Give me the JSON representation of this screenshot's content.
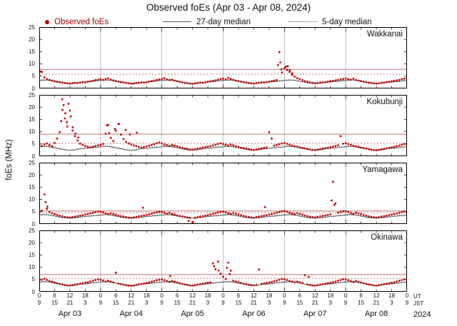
{
  "title": "Observed foEs (Apr 03 - Apr 08, 2024)",
  "legend": {
    "observed": "Observed foEs",
    "median27": "27-day median",
    "median5": "5-day median"
  },
  "ylabel": "foEs (MHz)",
  "axis": {
    "y_ticks": [
      0,
      5,
      10,
      15,
      20,
      25
    ],
    "hours_total": 144,
    "ut_label": "UT",
    "jst_label": "JST",
    "year": "2024",
    "x_ticks": [
      [
        0,
        "0",
        "9"
      ],
      [
        6,
        "6",
        "15"
      ],
      [
        12,
        "12",
        "21"
      ],
      [
        18,
        "18",
        "3"
      ],
      [
        24,
        "0",
        "9"
      ],
      [
        30,
        "6",
        "15"
      ],
      [
        36,
        "12",
        "21"
      ],
      [
        42,
        "18",
        "3"
      ],
      [
        48,
        "0",
        "9"
      ],
      [
        54,
        "6",
        "15"
      ],
      [
        60,
        "12",
        "21"
      ],
      [
        66,
        "18",
        "3"
      ],
      [
        72,
        "0",
        "9"
      ],
      [
        78,
        "6",
        "15"
      ],
      [
        84,
        "12",
        "21"
      ],
      [
        90,
        "18",
        "3"
      ],
      [
        96,
        "0",
        "9"
      ],
      [
        102,
        "6",
        "15"
      ],
      [
        108,
        "12",
        "21"
      ],
      [
        114,
        "18",
        "3"
      ],
      [
        120,
        "0",
        "9"
      ],
      [
        126,
        "6",
        "15"
      ],
      [
        132,
        "12",
        "21"
      ],
      [
        138,
        "18",
        "3"
      ],
      [
        144,
        "0",
        "9"
      ]
    ],
    "dates": [
      [
        12,
        "Apr 03"
      ],
      [
        36,
        "Apr 04"
      ],
      [
        60,
        "Apr 05"
      ],
      [
        84,
        "Apr 06"
      ],
      [
        108,
        "Apr 07"
      ],
      [
        132,
        "Apr 08"
      ]
    ]
  },
  "colors": {
    "observed": "#c00000",
    "median": "#333333",
    "red_line": "#b85c5c",
    "grid": "#999999"
  },
  "chart_data": {
    "type": "scatter",
    "x_unit": "hours UT from Apr 03 00:00",
    "ylim": [
      0,
      25
    ],
    "stations": [
      {
        "name": "Wakkanai",
        "line_solid": 7.8,
        "line_dotted": 5.8,
        "hourly": [
          5.2,
          6.8,
          4.5,
          3.8,
          3.5,
          3.2,
          2.9,
          2.7,
          2.6,
          2.4,
          2.2,
          2.1,
          2.0,
          2.1,
          2.3,
          2.2,
          2.4,
          2.6,
          2.5,
          2.7,
          2.9,
          3.1,
          3.4,
          3.6,
          3.8,
          3.5,
          3.9,
          4.1,
          3.6,
          3.3,
          3.0,
          2.8,
          2.6,
          2.5,
          2.3,
          2.1,
          2.0,
          2.0,
          2.2,
          2.3,
          2.5,
          2.4,
          2.6,
          2.8,
          3.0,
          3.2,
          3.5,
          3.7,
          3.9,
          4.2,
          3.7,
          3.4,
          3.6,
          3.2,
          3.0,
          2.7,
          2.5,
          2.3,
          2.2,
          2.0,
          1.9,
          2.1,
          2.2,
          2.4,
          2.3,
          2.5,
          2.7,
          2.9,
          3.1,
          3.3,
          3.6,
          3.8,
          4.0,
          3.7,
          4.3,
          3.9,
          3.5,
          3.2,
          3.0,
          2.8,
          2.6,
          2.4,
          2.2,
          2.1,
          2.0,
          2.2,
          2.3,
          2.5,
          2.4,
          2.6,
          2.8,
          3.0,
          3.2,
          3.4,
          14.8,
          6.5,
          8.2,
          7.5,
          6.8,
          5.5,
          4.8,
          4.2,
          3.8,
          3.4,
          3.0,
          2.7,
          2.5,
          2.3,
          2.1,
          2.2,
          2.4,
          2.5,
          2.6,
          2.8,
          3.0,
          3.1,
          3.3,
          3.5,
          3.7,
          3.9,
          4.1,
          3.8,
          3.6,
          4.0,
          3.5,
          3.2,
          3.0,
          2.8,
          2.6,
          2.4,
          2.3,
          2.1,
          2.0,
          2.1,
          2.3,
          2.4,
          2.6,
          2.7,
          2.9,
          3.1,
          3.3,
          3.5,
          3.8,
          4.0,
          4.2
        ],
        "extra": [
          [
            0.5,
            6.9
          ],
          [
            93.5,
            9.5
          ],
          [
            94.4,
            10.6
          ],
          [
            94.8,
            7.8
          ],
          [
            96.5,
            8.8
          ],
          [
            97.3,
            9.1
          ],
          [
            98.1,
            7.4
          ],
          [
            99.0,
            6.2
          ]
        ],
        "median27_diurnal": [
          3.2,
          3.3,
          3.4,
          3.4,
          3.3,
          3.1,
          2.9,
          2.7,
          2.5,
          2.3,
          2.2,
          2.1,
          2.0,
          2.1,
          2.2,
          2.3,
          2.4,
          2.5,
          2.6,
          2.7,
          2.8,
          2.9,
          3.0,
          3.1
        ],
        "median5_diurnal": [
          3.4,
          3.5,
          3.6,
          3.5,
          3.4,
          3.2,
          3.0,
          2.8,
          2.6,
          2.4,
          2.2,
          2.1,
          2.1,
          2.2,
          2.3,
          2.4,
          2.5,
          2.6,
          2.7,
          2.8,
          2.9,
          3.0,
          3.2,
          3.3
        ]
      },
      {
        "name": "Kokubunji",
        "line_solid": 9.0,
        "line_dotted": 5.2,
        "hourly": [
          4.5,
          4.2,
          4.8,
          5.2,
          4.6,
          4.0,
          5.5,
          7.2,
          9.8,
          23.2,
          15.4,
          12.1,
          18.6,
          10.5,
          8.2,
          6.4,
          5.1,
          4.6,
          4.2,
          3.9,
          3.6,
          3.8,
          4.1,
          4.4,
          4.6,
          5.0,
          9.2,
          12.8,
          7.5,
          6.2,
          10.4,
          13.1,
          8.8,
          7.0,
          5.8,
          5.2,
          4.8,
          4.4,
          4.1,
          3.8,
          3.5,
          3.7,
          4.0,
          4.3,
          4.6,
          4.9,
          5.3,
          5.6,
          5.2,
          4.8,
          4.5,
          4.2,
          4.6,
          4.3,
          4.0,
          3.7,
          3.4,
          3.2,
          3.0,
          2.8,
          2.7,
          2.9,
          3.1,
          3.3,
          3.5,
          3.7,
          3.9,
          4.1,
          4.4,
          4.7,
          5.0,
          5.3,
          5.0,
          4.7,
          4.4,
          4.8,
          4.5,
          4.1,
          3.8,
          3.5,
          3.3,
          3.1,
          2.9,
          2.7,
          2.6,
          2.8,
          3.0,
          3.2,
          3.4,
          3.6,
          9.8,
          7.2,
          4.3,
          4.6,
          4.9,
          5.2,
          5.4,
          5.1,
          4.7,
          4.4,
          4.1,
          3.9,
          3.6,
          3.4,
          3.2,
          3.0,
          2.8,
          2.6,
          2.5,
          2.7,
          2.9,
          3.1,
          3.3,
          3.5,
          3.7,
          3.9,
          4.2,
          4.5,
          8.2,
          5.1,
          5.3,
          5.0,
          4.6,
          4.3,
          4.0,
          3.8,
          3.5,
          3.3,
          3.1,
          2.9,
          2.7,
          2.5,
          2.4,
          2.6,
          2.8,
          3.0,
          3.2,
          3.4,
          3.6,
          3.8,
          4.1,
          4.4,
          4.7,
          5.0,
          4.8
        ],
        "extra": [
          [
            8.6,
            14.3
          ],
          [
            9.1,
            18.9
          ],
          [
            9.5,
            20.8
          ],
          [
            10.2,
            17.5
          ],
          [
            10.8,
            13.9
          ],
          [
            11.5,
            21.4
          ],
          [
            12.3,
            16.2
          ],
          [
            13.1,
            11.8
          ],
          [
            14.2,
            9.2
          ],
          [
            15.3,
            7.6
          ],
          [
            26.5,
            12.6
          ],
          [
            27.4,
            9.4
          ],
          [
            29.6,
            11.1
          ],
          [
            31.2,
            13.2
          ],
          [
            33.8,
            10.7
          ],
          [
            35.5,
            8.9
          ],
          [
            38.2,
            9.6
          ]
        ],
        "median27_diurnal": [
          3.8,
          3.9,
          4.0,
          3.9,
          3.8,
          3.6,
          3.4,
          3.2,
          3.0,
          2.8,
          2.6,
          2.5,
          2.4,
          2.5,
          2.6,
          2.8,
          3.0,
          3.1,
          3.2,
          3.3,
          3.4,
          3.5,
          3.6,
          3.7
        ],
        "median5_diurnal": [
          4.2,
          4.3,
          4.4,
          4.3,
          4.1,
          3.9,
          3.7,
          3.5,
          3.2,
          3.0,
          2.8,
          2.6,
          2.5,
          2.6,
          2.8,
          3.0,
          3.1,
          3.2,
          3.3,
          3.4,
          3.6,
          3.8,
          4.0,
          4.1
        ]
      },
      {
        "name": "Yamagawa",
        "line_solid": 5.3,
        "line_dotted": 4.6,
        "hourly": [
          4.8,
          5.5,
          12.1,
          6.2,
          4.9,
          4.4,
          4.0,
          3.7,
          3.4,
          3.1,
          2.9,
          2.7,
          2.6,
          2.8,
          3.0,
          3.2,
          3.4,
          3.6,
          3.8,
          4.0,
          4.3,
          4.6,
          4.9,
          5.1,
          5.0,
          4.7,
          4.3,
          4.0,
          4.4,
          4.1,
          3.8,
          3.5,
          3.2,
          3.0,
          2.8,
          2.6,
          2.5,
          2.7,
          2.9,
          3.1,
          3.3,
          3.5,
          3.7,
          3.9,
          4.2,
          4.5,
          4.8,
          5.0,
          4.9,
          4.6,
          4.2,
          4.5,
          4.1,
          3.8,
          3.5,
          3.3,
          3.1,
          2.9,
          2.7,
          2.5,
          0.6,
          2.6,
          2.8,
          3.0,
          3.2,
          3.4,
          3.6,
          3.8,
          4.1,
          4.4,
          4.7,
          4.9,
          5.1,
          4.8,
          4.4,
          4.1,
          4.5,
          4.2,
          3.9,
          3.6,
          3.3,
          3.1,
          2.9,
          2.7,
          2.6,
          2.8,
          3.0,
          3.2,
          3.4,
          3.6,
          3.8,
          4.0,
          4.3,
          4.6,
          4.9,
          5.2,
          5.3,
          5.0,
          4.6,
          4.3,
          4.0,
          4.4,
          4.1,
          3.8,
          3.5,
          3.2,
          3.0,
          2.8,
          2.7,
          2.9,
          3.1,
          3.3,
          3.5,
          3.7,
          3.9,
          17.2,
          8.4,
          4.6,
          4.9,
          5.2,
          5.2,
          4.9,
          4.5,
          4.2,
          4.6,
          4.3,
          4.0,
          3.7,
          3.4,
          3.1,
          2.9,
          2.7,
          2.6,
          2.8,
          3.0,
          3.2,
          3.4,
          3.6,
          3.8,
          4.0,
          4.3,
          4.6,
          4.9,
          5.1,
          5.0
        ],
        "extra": [
          [
            2.5,
            8.9
          ],
          [
            3.2,
            7.1
          ],
          [
            58.5,
            1.2
          ],
          [
            60.2,
            0.8
          ],
          [
            88.4,
            6.9
          ],
          [
            40.6,
            6.6
          ],
          [
            114.5,
            9.6
          ],
          [
            115.6,
            7.8
          ]
        ],
        "median27_diurnal": [
          3.6,
          3.7,
          3.8,
          3.7,
          3.6,
          3.4,
          3.2,
          3.0,
          2.8,
          2.6,
          2.5,
          2.4,
          2.3,
          2.4,
          2.5,
          2.6,
          2.8,
          2.9,
          3.0,
          3.1,
          3.2,
          3.3,
          3.4,
          3.5
        ],
        "median5_diurnal": [
          3.8,
          3.9,
          4.0,
          3.9,
          3.8,
          3.6,
          3.4,
          3.2,
          2.9,
          2.7,
          2.5,
          2.4,
          2.4,
          2.5,
          2.6,
          2.8,
          2.9,
          3.0,
          3.1,
          3.2,
          3.4,
          3.5,
          3.6,
          3.7
        ]
      },
      {
        "name": "Okinawa",
        "line_solid": 7.0,
        "line_dotted": 5.5,
        "hourly": [
          4.6,
          4.9,
          5.3,
          4.8,
          4.4,
          4.1,
          3.8,
          3.5,
          3.2,
          3.0,
          2.8,
          2.6,
          2.5,
          2.7,
          2.9,
          3.1,
          3.3,
          3.5,
          3.7,
          3.9,
          4.2,
          4.5,
          4.8,
          5.0,
          4.9,
          4.6,
          4.2,
          4.5,
          4.1,
          3.8,
          7.8,
          3.3,
          3.1,
          2.9,
          2.7,
          2.5,
          2.4,
          2.6,
          2.8,
          3.0,
          3.2,
          3.4,
          3.6,
          3.8,
          4.1,
          4.4,
          4.7,
          4.9,
          5.0,
          4.7,
          4.3,
          4.0,
          4.4,
          4.1,
          3.8,
          3.5,
          3.2,
          3.0,
          2.8,
          2.6,
          2.5,
          2.7,
          2.9,
          3.1,
          3.3,
          3.5,
          3.7,
          3.9,
          11.6,
          9.2,
          12.3,
          7.4,
          6.1,
          5.2,
          11.9,
          8.6,
          4.5,
          4.2,
          3.9,
          3.6,
          3.3,
          3.1,
          2.9,
          2.7,
          2.6,
          2.8,
          9.1,
          3.2,
          3.4,
          3.6,
          3.8,
          4.0,
          4.3,
          4.6,
          4.9,
          5.2,
          5.1,
          4.8,
          4.4,
          4.1,
          3.8,
          4.2,
          3.9,
          3.6,
          6.8,
          3.0,
          2.8,
          2.6,
          2.5,
          2.7,
          2.9,
          3.1,
          3.3,
          3.5,
          3.7,
          3.9,
          4.2,
          4.5,
          4.8,
          5.1,
          5.0,
          4.7,
          4.3,
          4.0,
          4.4,
          4.1,
          3.8,
          3.5,
          3.2,
          3.0,
          2.8,
          2.6,
          2.5,
          2.7,
          2.9,
          3.1,
          3.3,
          3.5,
          3.7,
          3.9,
          4.2,
          4.5,
          4.8,
          5.0,
          4.9
        ],
        "extra": [
          [
            68.5,
            10.4
          ],
          [
            70.2,
            8.7
          ],
          [
            73.5,
            9.8
          ],
          [
            74.6,
            7.2
          ],
          [
            51.3,
            6.4
          ],
          [
            105.5,
            6.1
          ]
        ],
        "median27_diurnal": [
          3.9,
          4.0,
          4.1,
          4.0,
          3.9,
          3.7,
          3.5,
          3.3,
          3.1,
          2.9,
          2.7,
          2.6,
          2.5,
          2.6,
          2.7,
          2.9,
          3.0,
          3.1,
          3.2,
          3.3,
          3.5,
          3.6,
          3.7,
          3.8
        ],
        "median5_diurnal": [
          4.1,
          4.2,
          4.3,
          4.2,
          4.0,
          3.8,
          3.6,
          3.4,
          3.2,
          3.0,
          2.8,
          2.7,
          2.6,
          2.7,
          2.8,
          3.0,
          3.1,
          3.2,
          3.4,
          3.5,
          3.6,
          3.8,
          3.9,
          4.0
        ]
      }
    ]
  }
}
